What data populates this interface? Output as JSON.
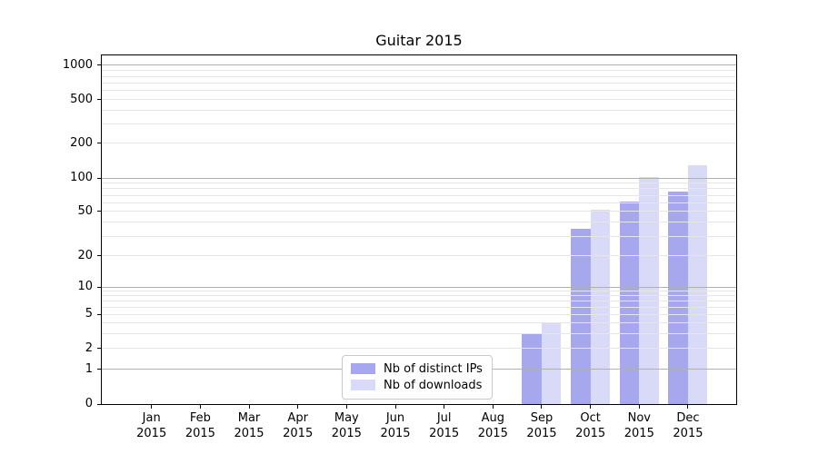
{
  "chart_data": {
    "type": "bar",
    "title": "Guitar 2015",
    "categories": [
      "Jan",
      "Feb",
      "Mar",
      "Apr",
      "May",
      "Jun",
      "Jul",
      "Aug",
      "Sep",
      "Oct",
      "Nov",
      "Dec"
    ],
    "category_year": "2015",
    "series": [
      {
        "name": "Nb of distinct IPs",
        "color": "#a7a7ee",
        "values": [
          null,
          null,
          null,
          null,
          null,
          null,
          null,
          null,
          3,
          35,
          62,
          75
        ]
      },
      {
        "name": "Nb of downloads",
        "color": "#d9d9f8",
        "values": [
          null,
          null,
          null,
          null,
          null,
          null,
          null,
          null,
          4,
          52,
          102,
          130
        ]
      }
    ],
    "y_axis": {
      "scale": "symlog",
      "ticks": [
        0,
        1,
        2,
        5,
        10,
        20,
        50,
        100,
        200,
        500,
        1000
      ]
    },
    "grid": {
      "enabled": true,
      "major_values": [
        1,
        10,
        100,
        1000
      ],
      "minor_values": [
        2,
        3,
        4,
        5,
        6,
        7,
        8,
        9,
        20,
        30,
        40,
        50,
        60,
        70,
        80,
        90,
        200,
        300,
        400,
        500,
        600,
        700,
        800,
        900
      ],
      "major_color": "#b0b0b0",
      "minor_color": "#e6e6e6"
    },
    "legend": {
      "position": "lower-center"
    }
  }
}
